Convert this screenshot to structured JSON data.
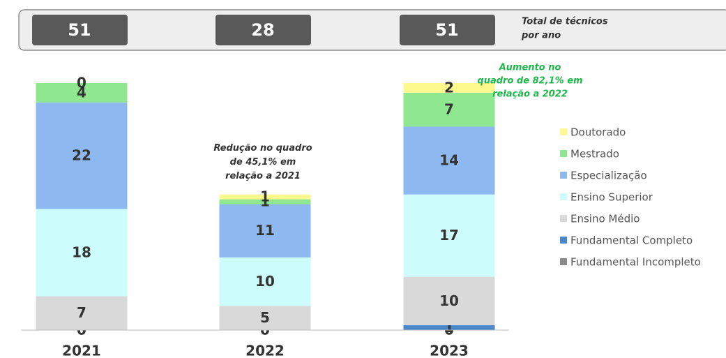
{
  "chart_data": {
    "type": "stacked_bar",
    "header": {
      "totals": [
        51,
        28,
        51
      ],
      "label_lines": [
        "Total de técnicos",
        "por ano"
      ]
    },
    "categories": [
      "2021",
      "2022",
      "2023"
    ],
    "series": [
      {
        "name": "Fundamental Incompleto",
        "color": "#8c8c8c",
        "values": [
          0,
          0,
          0
        ]
      },
      {
        "name": "Fundamental Completo",
        "color": "#4a86c8",
        "values": [
          0,
          0,
          1
        ]
      },
      {
        "name": "Ensino Médio",
        "color": "#d9d9d9",
        "values": [
          7,
          5,
          10
        ]
      },
      {
        "name": "Ensino Superior",
        "color": "#ccfcfc",
        "values": [
          18,
          10,
          17
        ]
      },
      {
        "name": "Especialização",
        "color": "#8db9f0",
        "values": [
          22,
          11,
          14
        ]
      },
      {
        "name": "Mestrado",
        "color": "#8fe88f",
        "values": [
          4,
          1,
          7
        ]
      },
      {
        "name": "Doutorado",
        "color": "#fdf98f",
        "values": [
          0,
          1,
          2
        ]
      }
    ],
    "annotations": [
      {
        "category": 1,
        "color": "#333333",
        "lines": [
          "Redução no quadro",
          "de 45,1% em",
          "relação a 2021"
        ]
      },
      {
        "category": 2,
        "color": "#1db84a",
        "lines": [
          "Aumento no",
          "quadro de 82,1% em",
          "relação a 2022"
        ]
      }
    ]
  }
}
